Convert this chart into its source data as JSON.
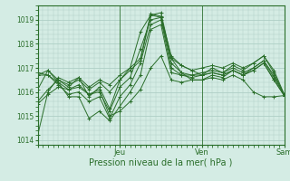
{
  "title": "",
  "xlabel": "Pression niveau de la mer( hPa )",
  "ylabel": "",
  "bg_color": "#d4ece4",
  "grid_color": "#aecfc6",
  "line_color": "#2a6e2a",
  "ylim": [
    1013.8,
    1019.6
  ],
  "xlim": [
    0,
    48
  ],
  "yticks": [
    1014,
    1015,
    1016,
    1017,
    1018,
    1019
  ],
  "xtick_positions": [
    0,
    16,
    32,
    48
  ],
  "xtick_labels": [
    "",
    "Jeu",
    "Ven",
    "Sam"
  ],
  "lines": [
    [
      1014.2,
      1016.0,
      1016.6,
      1016.4,
      1016.6,
      1016.2,
      1016.5,
      1016.3,
      1016.7,
      1017.0,
      1017.4,
      1019.25,
      1019.15,
      1017.5,
      1017.1,
      1016.9,
      1016.7,
      1017.0,
      1016.8,
      1017.1,
      1016.9,
      1017.2,
      1017.5,
      1016.9,
      1015.9
    ],
    [
      1016.1,
      1016.9,
      1016.5,
      1016.2,
      1016.6,
      1015.8,
      1016.2,
      1015.3,
      1016.5,
      1017.0,
      1018.5,
      1019.2,
      1019.3,
      1017.4,
      1016.8,
      1016.5,
      1016.5,
      1016.7,
      1016.6,
      1016.9,
      1016.7,
      1017.0,
      1017.3,
      1016.7,
      1015.9
    ],
    [
      1016.7,
      1016.7,
      1016.4,
      1016.1,
      1016.2,
      1015.9,
      1016.0,
      1015.2,
      1016.2,
      1016.6,
      1017.8,
      1019.0,
      1019.1,
      1017.2,
      1016.8,
      1016.7,
      1016.7,
      1016.8,
      1016.7,
      1016.9,
      1016.7,
      1016.9,
      1017.2,
      1016.5,
      1015.85
    ],
    [
      1016.8,
      1016.7,
      1016.3,
      1015.9,
      1016.0,
      1015.6,
      1015.8,
      1014.9,
      1015.8,
      1016.3,
      1017.2,
      1018.8,
      1019.0,
      1017.0,
      1016.7,
      1016.6,
      1016.7,
      1016.8,
      1016.7,
      1016.9,
      1016.7,
      1016.9,
      1017.2,
      1016.5,
      1015.85
    ],
    [
      1016.7,
      1016.9,
      1016.4,
      1015.8,
      1015.8,
      1014.9,
      1015.2,
      1014.8,
      1015.4,
      1016.0,
      1016.7,
      1018.6,
      1018.8,
      1016.8,
      1016.7,
      1016.7,
      1016.8,
      1016.9,
      1016.8,
      1017.0,
      1016.8,
      1017.0,
      1017.3,
      1016.6,
      1015.9
    ],
    [
      1015.5,
      1015.9,
      1016.2,
      1016.1,
      1016.3,
      1015.9,
      1016.1,
      1015.0,
      1015.2,
      1015.6,
      1016.1,
      1017.0,
      1017.5,
      1016.5,
      1016.4,
      1016.5,
      1016.5,
      1016.6,
      1016.5,
      1016.7,
      1016.5,
      1016.0,
      1015.8,
      1015.8,
      1015.85
    ],
    [
      1015.6,
      1016.1,
      1016.5,
      1016.3,
      1016.5,
      1016.1,
      1016.4,
      1016.0,
      1016.5,
      1016.9,
      1017.3,
      1019.2,
      1019.1,
      1017.4,
      1017.1,
      1016.9,
      1017.0,
      1017.1,
      1017.0,
      1017.2,
      1017.0,
      1017.2,
      1017.5,
      1016.8,
      1015.85
    ]
  ]
}
